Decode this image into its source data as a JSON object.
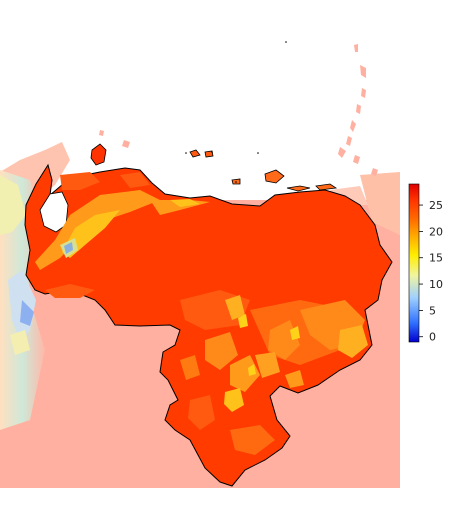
{
  "legend": {
    "ticks": [
      {
        "value": 0,
        "label": "0"
      },
      {
        "value": 5,
        "label": "5"
      },
      {
        "value": 10,
        "label": "10"
      },
      {
        "value": 15,
        "label": "15"
      },
      {
        "value": 20,
        "label": "20"
      },
      {
        "value": 25,
        "label": "25"
      }
    ],
    "min": -1,
    "max": 29,
    "colors": [
      "#0000cc",
      "#3070ff",
      "#9fd0ff",
      "#f0f4a0",
      "#ffee00",
      "#ffb000",
      "#ff6a00",
      "#ff3300",
      "#e00000"
    ]
  },
  "colors": {
    "hot": "#ff3300",
    "warm": "#ff5a10",
    "mid": "#ff8a1a",
    "yellow": "#ffd21a",
    "cool_blue": "#6aa0ff",
    "faded": "#ffb0a0",
    "border": "#000000"
  }
}
